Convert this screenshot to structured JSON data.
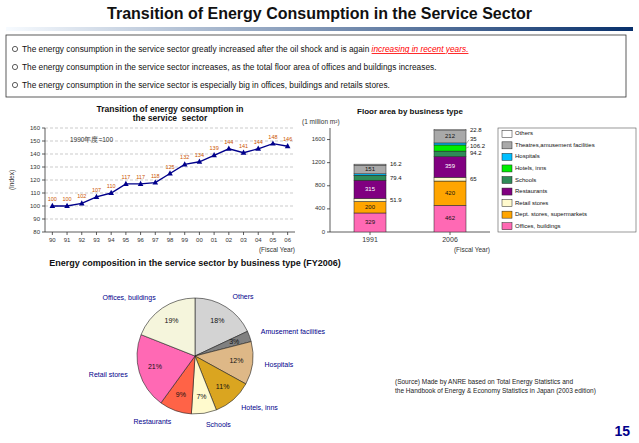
{
  "title": "Transition of Energy Consumption in the Service Sector",
  "annotations": [
    [
      {
        "text": "The energy consumption in the service sector greatly increased after the oil shock and is again "
      },
      {
        "text": "increasing in recent years.",
        "color": "red"
      }
    ],
    [
      {
        "text": "The energy consumption in the service sector increases, as the total floor area of offices and buildings increases."
      }
    ],
    [
      {
        "text": "The energy consumption in the service sector is especially big in offices, buildings and retails stores."
      }
    ]
  ],
  "page_number": "15",
  "chart_data": [
    {
      "type": "line",
      "title": "Transition of energy consumption in\nthe service  sector",
      "ylabel": "(Index)",
      "xlabel": "(Fiscal Year)",
      "annotations": [
        "1990年度=100"
      ],
      "categories": [
        "90",
        "91",
        "92",
        "93",
        "94",
        "95",
        "96",
        "97",
        "98",
        "99",
        "00",
        "01",
        "02",
        "03",
        "04",
        "05",
        "06"
      ],
      "values": [
        100,
        100,
        102,
        107,
        110,
        117,
        117,
        118,
        125,
        132,
        134,
        139,
        144,
        141,
        144,
        148,
        146
      ],
      "color": "#00008B",
      "marker": "triangle",
      "ylim": [
        80,
        160
      ],
      "yticks": [
        80,
        90,
        100,
        110,
        120,
        130,
        140,
        150,
        160
      ],
      "grid": true,
      "data_labels": true
    },
    {
      "type": "bar",
      "stacked": true,
      "title": "Floor area by business type",
      "ylabel": "(1 million m²)",
      "xlabel": "(Fiscal Year)",
      "categories": [
        "1991",
        "2006"
      ],
      "series": [
        {
          "name": "Offices, buildings",
          "color": "#FF69B4",
          "values": [
            329,
            462
          ],
          "value_labels": [
            "329",
            "462"
          ]
        },
        {
          "name": "Dept. stores, supermarkets",
          "color": "#FFA500",
          "values": [
            200,
            420
          ],
          "value_labels": [
            "200",
            "420"
          ]
        },
        {
          "name": "Retail stores",
          "color": "#FFFACD",
          "values": [
            51.9,
            65
          ],
          "value_labels": [
            "51.9",
            "65"
          ]
        },
        {
          "name": "Restaurants",
          "color": "#800080",
          "values": [
            315,
            359
          ],
          "value_labels": [
            "315",
            "359"
          ]
        },
        {
          "name": "Schools",
          "color": "#2E8B57",
          "values": [
            79.4,
            94.2
          ],
          "value_labels": [
            "79.4",
            "94.2"
          ]
        },
        {
          "name": "Hotels, inns",
          "color": "#00EE00",
          "values": [
            6.6,
            106.2
          ],
          "value_labels": [
            null,
            "106.2"
          ]
        },
        {
          "name": "Hospitals",
          "color": "#00BFFF",
          "values": [
            25,
            35
          ],
          "value_labels": [
            null,
            "35"
          ]
        },
        {
          "name": "Theatres,amusement facilities",
          "color": "#A9A9A9",
          "values": [
            151,
            212
          ],
          "value_labels": [
            "151",
            "212"
          ]
        },
        {
          "name": "Others",
          "color": "white",
          "values": [
            16.2,
            22.8
          ],
          "value_labels": [
            "16.2",
            "22.8"
          ]
        }
      ],
      "ylim": [
        0,
        1800
      ],
      "yticks": [
        0,
        400,
        800,
        1200,
        1600
      ],
      "grid": false,
      "legend": "right",
      "data_labels": true
    },
    {
      "type": "pie",
      "title": "Energy composition in the service sector by business type (FY2006)",
      "categories": [
        "Others",
        "Amusement facilities",
        "Hospitals",
        "Hotels, inns",
        "Schools",
        "Restaurants",
        "Retail stores",
        "Offices, buildings"
      ],
      "values": [
        18,
        3,
        12,
        11,
        7,
        9,
        21,
        19
      ],
      "value_labels": [
        "18%",
        "3%",
        "12%",
        "11%",
        "7%",
        "9%",
        "21%",
        "19%"
      ],
      "colors": [
        "#D3D3D3",
        "#808080",
        "#DEB887",
        "#DAA520",
        "#FFFACD",
        "#FF6347",
        "#FF69B4",
        "#F5F5DC"
      ],
      "data_labels": true,
      "annotations": [
        "(Source) Made by ANRE based on Total Energy Statistics and\nthe Handbook of Energy & Economy Statistics in Japan (2003 edition)"
      ]
    }
  ]
}
